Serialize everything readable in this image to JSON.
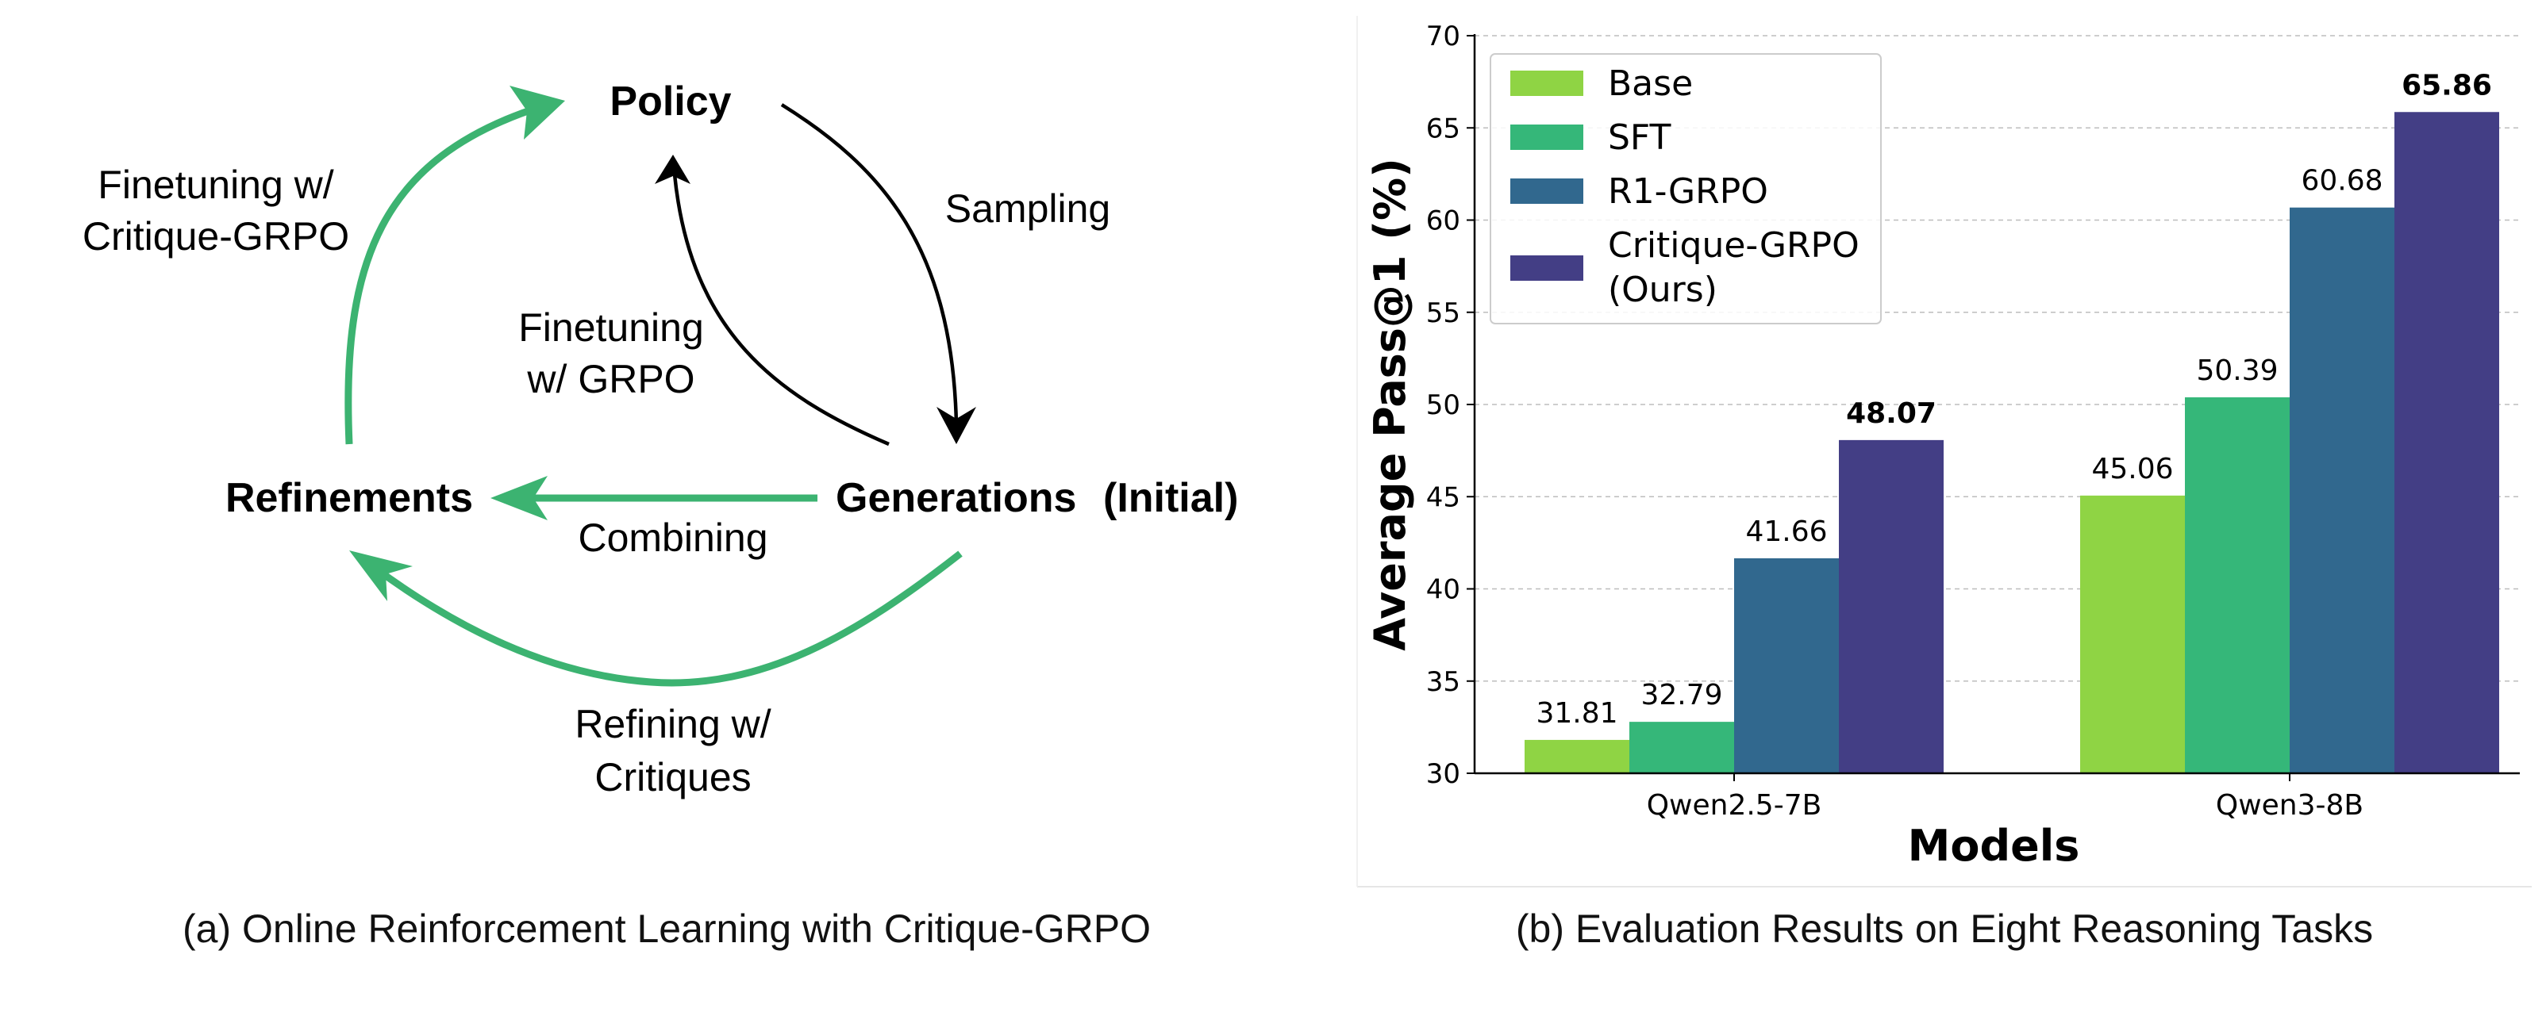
{
  "diagram": {
    "nodes": {
      "policy": "Policy",
      "refinements": "Refinements",
      "generations": "Generations",
      "initial": "(Initial)"
    },
    "edges": {
      "sampling": "Sampling",
      "finetune_grpo_1": "Finetuning",
      "finetune_grpo_2": "w/ GRPO",
      "finetune_critique_1": "Finetuning w/",
      "finetune_critique_2": "Critique-GRPO",
      "combining": "Combining",
      "refining_1": "Refining w/",
      "refining_2": "Critiques"
    },
    "colors": {
      "green": "#3cb371",
      "black": "#000000"
    },
    "caption": "(a) Online Reinforcement Learning with Critique-GRPO"
  },
  "chart_data": {
    "type": "bar",
    "categories": [
      "Qwen2.5-7B",
      "Qwen3-8B"
    ],
    "series": [
      {
        "name": "Base",
        "values": [
          31.81,
          45.06
        ],
        "color": "#8fd444"
      },
      {
        "name": "SFT",
        "values": [
          32.79,
          50.39
        ],
        "color": "#35b779"
      },
      {
        "name": "R1-GRPO",
        "values": [
          41.66,
          60.68
        ],
        "color": "#31688e"
      },
      {
        "name": "Critique-GRPO (Ours)",
        "legend_lines": [
          "Critique-GRPO",
          "(Ours)"
        ],
        "values": [
          48.07,
          65.86
        ],
        "color": "#433e85",
        "bold_labels": true
      }
    ],
    "value_labels": [
      [
        "31.81",
        "45.06"
      ],
      [
        "32.79",
        "50.39"
      ],
      [
        "41.66",
        "60.68"
      ],
      [
        "48.07",
        "65.86"
      ]
    ],
    "xlabel": "Models",
    "ylabel": "Average Pass@1 (%)",
    "ylim": [
      30,
      70
    ],
    "yticks": [
      "30",
      "35",
      "40",
      "45",
      "50",
      "55",
      "60",
      "65",
      "70"
    ],
    "grid": "y-dashed",
    "legend_position": "top-left",
    "caption": "(b) Evaluation Results on Eight Reasoning Tasks"
  }
}
